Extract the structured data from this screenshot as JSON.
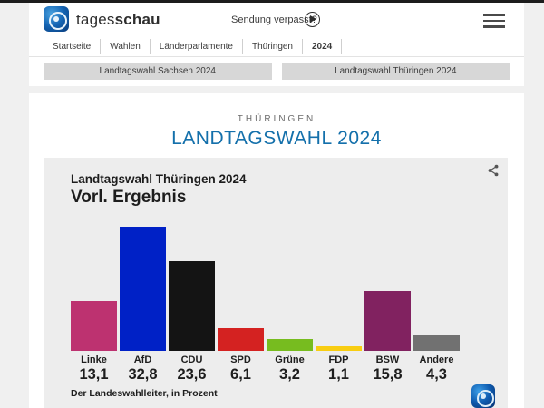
{
  "theme": {
    "accent_blue": "#1470ab",
    "card_bg": "#ededed",
    "tab_bg": "#d7d7d7"
  },
  "header": {
    "brand": {
      "name_regular": "tages",
      "name_bold": "schau"
    },
    "sendung_link": "Sendung verpasst?",
    "breadcrumb": [
      {
        "label": "Startseite"
      },
      {
        "label": "Wahlen"
      },
      {
        "label": "Länderparlamente"
      },
      {
        "label": "Thüringen"
      },
      {
        "label": "2024"
      }
    ],
    "tabs": [
      {
        "label": "Landtagswahl Sachsen 2024"
      },
      {
        "label": "Landtagswahl Thüringen 2024"
      }
    ]
  },
  "page": {
    "kicker": "THÜRINGEN",
    "title": "LANDTAGSWAHL 2024"
  },
  "chart_data": {
    "type": "bar",
    "title": "Landtagswahl Thüringen 2024",
    "subtitle": "Vorl. Ergebnis",
    "source": "Der Landeswahlleiter, in Prozent",
    "ylabel": "Prozent",
    "ylim": [
      0,
      35
    ],
    "grid": false,
    "legend": false,
    "categories": [
      "Linke",
      "AfD",
      "CDU",
      "SPD",
      "Grüne",
      "FDP",
      "BSW",
      "Andere"
    ],
    "values": [
      13.1,
      32.8,
      23.6,
      6.1,
      3.2,
      1.1,
      15.8,
      4.3
    ],
    "display_values": [
      "13,1",
      "32,8",
      "23,6",
      "6,1",
      "3,2",
      "1,1",
      "15,8",
      "4,3"
    ],
    "colors": [
      "#bd3270",
      "#0021c6",
      "#141414",
      "#d42221",
      "#77bc1f",
      "#f8cd12",
      "#812260",
      "#717171"
    ]
  }
}
